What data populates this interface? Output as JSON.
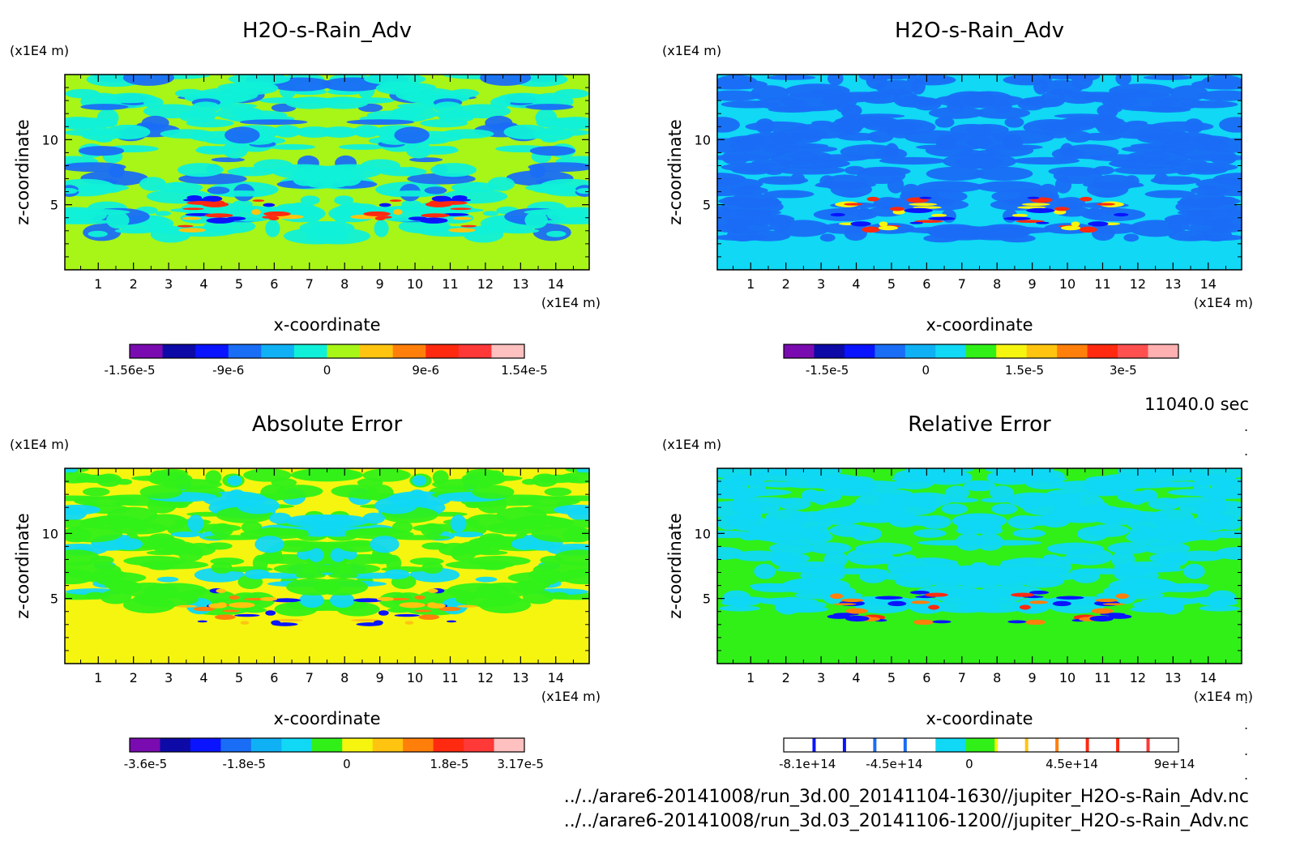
{
  "figure": {
    "time_label": "11040.0 sec",
    "file_paths": [
      "../../arare6-20141008/run_3d.00_20141104-1630//jupiter_H2O-s-Rain_Adv.nc",
      "../../arare6-20141008/run_3d.03_20141106-1200//jupiter_H2O-s-Rain_Adv.nc"
    ],
    "dots": [
      ".",
      ".",
      ".",
      ".",
      ".",
      ".",
      ".",
      "."
    ]
  },
  "chart_data": [
    {
      "type": "heatmap",
      "title": "H2O-s-Rain_Adv",
      "xlabel": "x-coordinate",
      "ylabel": "z-coordinate",
      "x_unit": "(x1E4 m)",
      "y_unit": "(x1E4 m)",
      "x_ticks": [
        "1",
        "2",
        "3",
        "4",
        "5",
        "6",
        "7",
        "8",
        "9",
        "10",
        "11",
        "12",
        "13",
        "14"
      ],
      "y_ticks": [
        "5",
        "10"
      ],
      "xlim": [
        0.05,
        14.95
      ],
      "ylim": [
        0,
        15
      ],
      "colorbar": {
        "colors": [
          "#7a0bb0",
          "#0d0aa8",
          "#0a14ff",
          "#1a6df5",
          "#10b0f5",
          "#10f0d8",
          "#a8f518",
          "#ffc410",
          "#ff7f0a",
          "#ff2a10",
          "#ff3838",
          "#ffc0c0"
        ],
        "labels": [
          "-1.56e-5",
          "-9e-6",
          "0",
          "9e-6",
          "1.54e-5"
        ],
        "label_positions": [
          0,
          0.25,
          0.5,
          0.75,
          1.0
        ]
      },
      "field": {
        "background": "#a8f518",
        "secondary": "#10f0d8",
        "tertiary": "#1a6df5",
        "accent_pos": "#ff2a10",
        "accent_neg": "#0a14ff",
        "accent_mid": "#ffc410"
      }
    },
    {
      "type": "heatmap",
      "title": "H2O-s-Rain_Adv",
      "xlabel": "x-coordinate",
      "ylabel": "z-coordinate",
      "x_unit": "(x1E4 m)",
      "y_unit": "(x1E4 m)",
      "x_ticks": [
        "1",
        "2",
        "3",
        "4",
        "5",
        "6",
        "7",
        "8",
        "9",
        "10",
        "11",
        "12",
        "13",
        "14"
      ],
      "y_ticks": [
        "5",
        "10"
      ],
      "xlim": [
        0.05,
        14.95
      ],
      "ylim": [
        0,
        15
      ],
      "colorbar": {
        "colors": [
          "#7a0bb0",
          "#0d0aa8",
          "#0a14ff",
          "#1a6df5",
          "#10b0f5",
          "#10d8f5",
          "#30f018",
          "#f5f510",
          "#ffc410",
          "#ff7f0a",
          "#ff2a10",
          "#ff5050",
          "#ffb0b0"
        ],
        "labels": [
          "-1.5e-5",
          "0",
          "1.5e-5",
          "3e-5"
        ],
        "label_positions": [
          0.11,
          0.36,
          0.61,
          0.86
        ]
      },
      "field": {
        "background": "#10d8f5",
        "secondary": "#1a6df5",
        "tertiary": "#1a6df5",
        "accent_pos": "#ff2a10",
        "accent_neg": "#0a14ff",
        "accent_mid": "#f5f510"
      }
    },
    {
      "type": "heatmap",
      "title": "Absolute Error",
      "xlabel": "x-coordinate",
      "ylabel": "z-coordinate",
      "x_unit": "(x1E4 m)",
      "y_unit": "(x1E4 m)",
      "x_ticks": [
        "1",
        "2",
        "3",
        "4",
        "5",
        "6",
        "7",
        "8",
        "9",
        "10",
        "11",
        "12",
        "13",
        "14"
      ],
      "y_ticks": [
        "5",
        "10"
      ],
      "xlim": [
        0.05,
        14.95
      ],
      "ylim": [
        0,
        15
      ],
      "colorbar": {
        "colors": [
          "#7a0bb0",
          "#0d0aa8",
          "#0a14ff",
          "#1a6df5",
          "#10b0f5",
          "#10d8f5",
          "#30f018",
          "#f5f510",
          "#ffc410",
          "#ff7f0a",
          "#ff2a10",
          "#ff3838",
          "#ffc0c0"
        ],
        "labels": [
          "-3.6e-5",
          "-1.8e-5",
          "0",
          "1.8e-5",
          "3.17e-5"
        ],
        "label_positions": [
          0.04,
          0.29,
          0.55,
          0.81,
          0.99
        ]
      },
      "field": {
        "background": "#f5f510",
        "secondary": "#30f018",
        "tertiary": "#10d8f5",
        "accent_pos": "#ff7f0a",
        "accent_neg": "#0a14ff",
        "accent_mid": "#ffc410"
      }
    },
    {
      "type": "heatmap",
      "title": "Relative Error",
      "xlabel": "x-coordinate",
      "ylabel": "z-coordinate",
      "x_unit": "(x1E4 m)",
      "y_unit": "(x1E4 m)",
      "x_ticks": [
        "1",
        "2",
        "3",
        "4",
        "5",
        "6",
        "7",
        "8",
        "9",
        "10",
        "11",
        "12",
        "13",
        "14"
      ],
      "y_ticks": [
        "5",
        "10"
      ],
      "xlim": [
        0.05,
        14.95
      ],
      "ylim": [
        0,
        15
      ],
      "colorbar": {
        "colors": [
          "#ffffff",
          "#ffffff",
          "#ffffff",
          "#ffffff",
          "#ffffff",
          "#10d8f5",
          "#30f018",
          "#ffffff",
          "#ffffff",
          "#ffffff",
          "#ffffff",
          "#ffffff",
          "#ffffff"
        ],
        "stripe_colors": [
          "#0a14ff",
          "#0a14ff",
          "#1a6df5",
          "#1a6df5",
          "",
          "",
          "#f5f510",
          "#ffc410",
          "#ff7f0a",
          "#ff2a10",
          "#ff2a10",
          "#ff3838"
        ],
        "labels": [
          "-8.1e+14",
          "-4.5e+14",
          "0",
          "4.5e+14",
          "9e+14"
        ],
        "label_positions": [
          0.06,
          0.28,
          0.47,
          0.73,
          0.99
        ]
      },
      "field": {
        "background": "#30f018",
        "secondary": "#10d8f5",
        "tertiary": "#10d8f5",
        "accent_pos": "#ff7f0a",
        "accent_neg": "#0a14ff",
        "accent_mid": "#ff2a10"
      }
    }
  ]
}
